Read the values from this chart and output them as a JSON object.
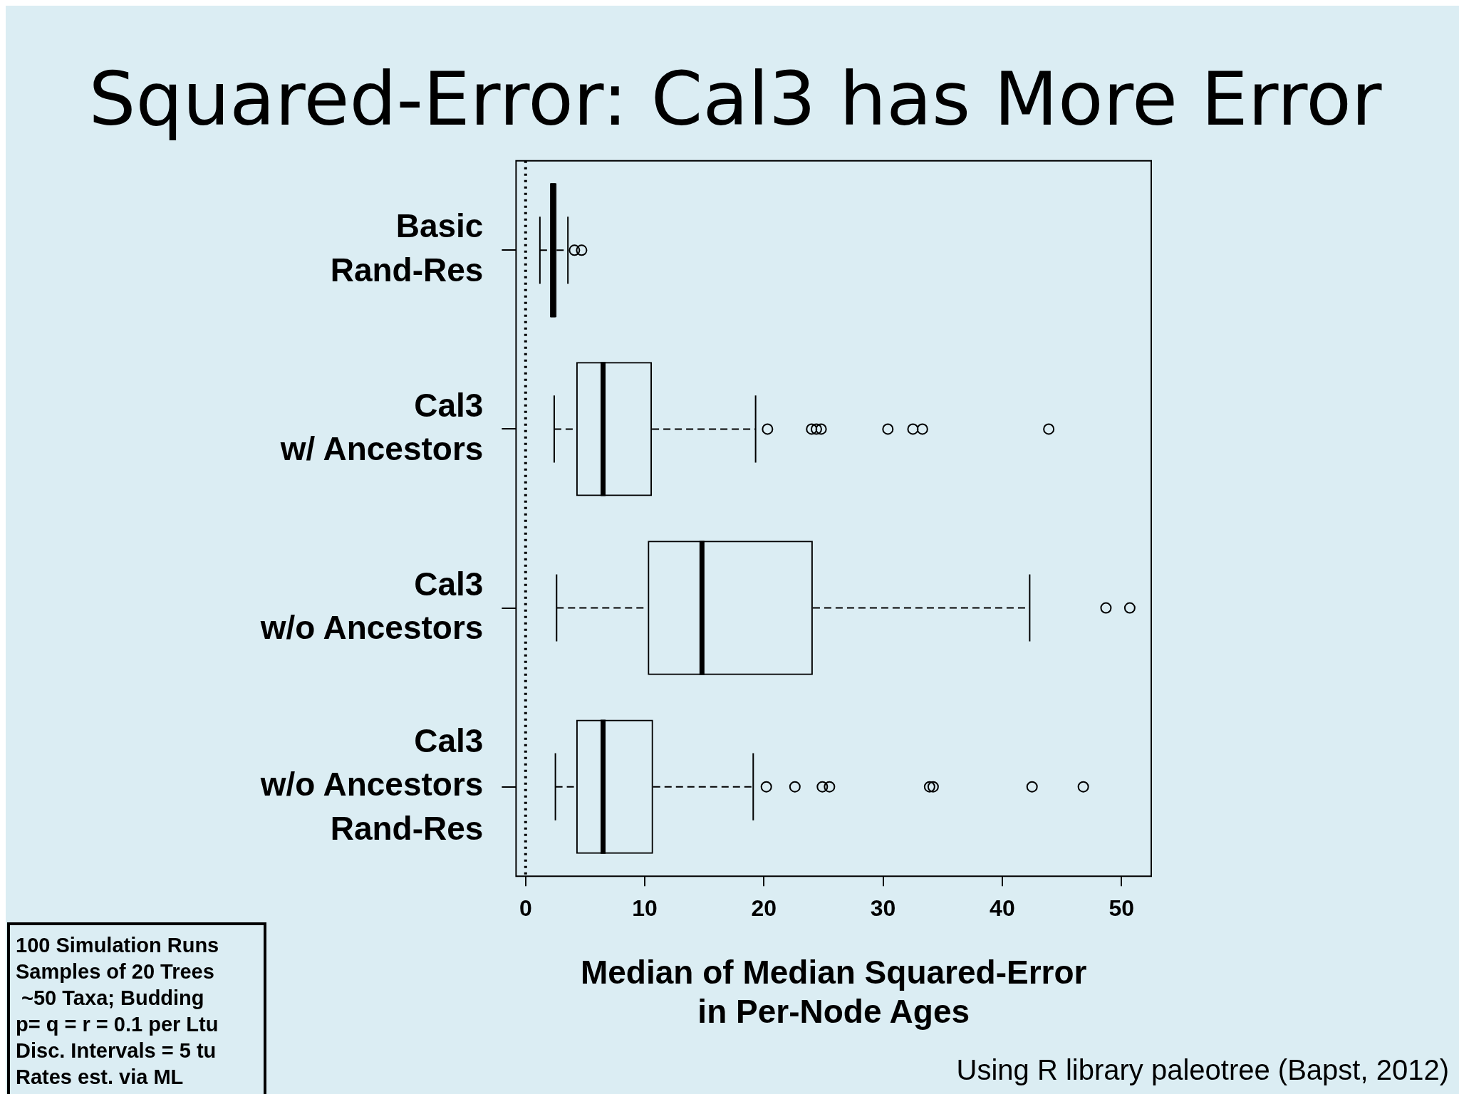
{
  "chart_data": {
    "type": "box",
    "title": "Squared-Error: Cal3 has More Error",
    "xlabel": "Median of Median Squared-Error\nin Per-Node Ages",
    "orientation": "horizontal",
    "categories": [
      "Basic\nRand-Res",
      "Cal3\nw/ Ancestors",
      "Cal3\nw/o Ancestors",
      "Cal3\nw/o Ancestors\nRand-Res"
    ],
    "series": [
      {
        "color": "#000000",
        "boxes": [
          {
            "low": 1.2,
            "q1": 2.05,
            "median": 2.3,
            "q3": 2.6,
            "high": 3.55,
            "outliers": [
              4.1,
              4.7
            ]
          },
          {
            "low": 2.4,
            "q1": 4.25,
            "median": 6.5,
            "q3": 10.6,
            "high": 19.3,
            "outliers": [
              20.3,
              24.0,
              24.4,
              24.8,
              30.4,
              32.5,
              33.3,
              43.9
            ]
          },
          {
            "low": 2.6,
            "q1": 10.25,
            "median": 14.8,
            "q3": 24.1,
            "high": 42.3,
            "outliers": [
              48.7,
              50.7
            ]
          },
          {
            "low": 2.5,
            "q1": 4.25,
            "median": 6.5,
            "q3": 10.7,
            "high": 19.1,
            "outliers": [
              20.2,
              22.6,
              24.9,
              25.5,
              33.9,
              34.2,
              42.5,
              46.8
            ]
          }
        ]
      }
    ],
    "xlim": [
      -0.8,
      52.5
    ],
    "xticks": [
      0,
      10,
      20,
      30,
      40,
      50
    ],
    "grid": false,
    "ref_lines": [
      {
        "axis": "x",
        "value": 0,
        "line_style": "dotted"
      }
    ],
    "annotations": [
      "100 Simulation Runs\nSamples of 20 Trees\n ~50 Taxa; Budding\np= q = r = 0.1 per Ltu\nDisc. Intervals = 5 tu\nRates est. via ML",
      "Using R library paleotree (Bapst, 2012)"
    ]
  }
}
